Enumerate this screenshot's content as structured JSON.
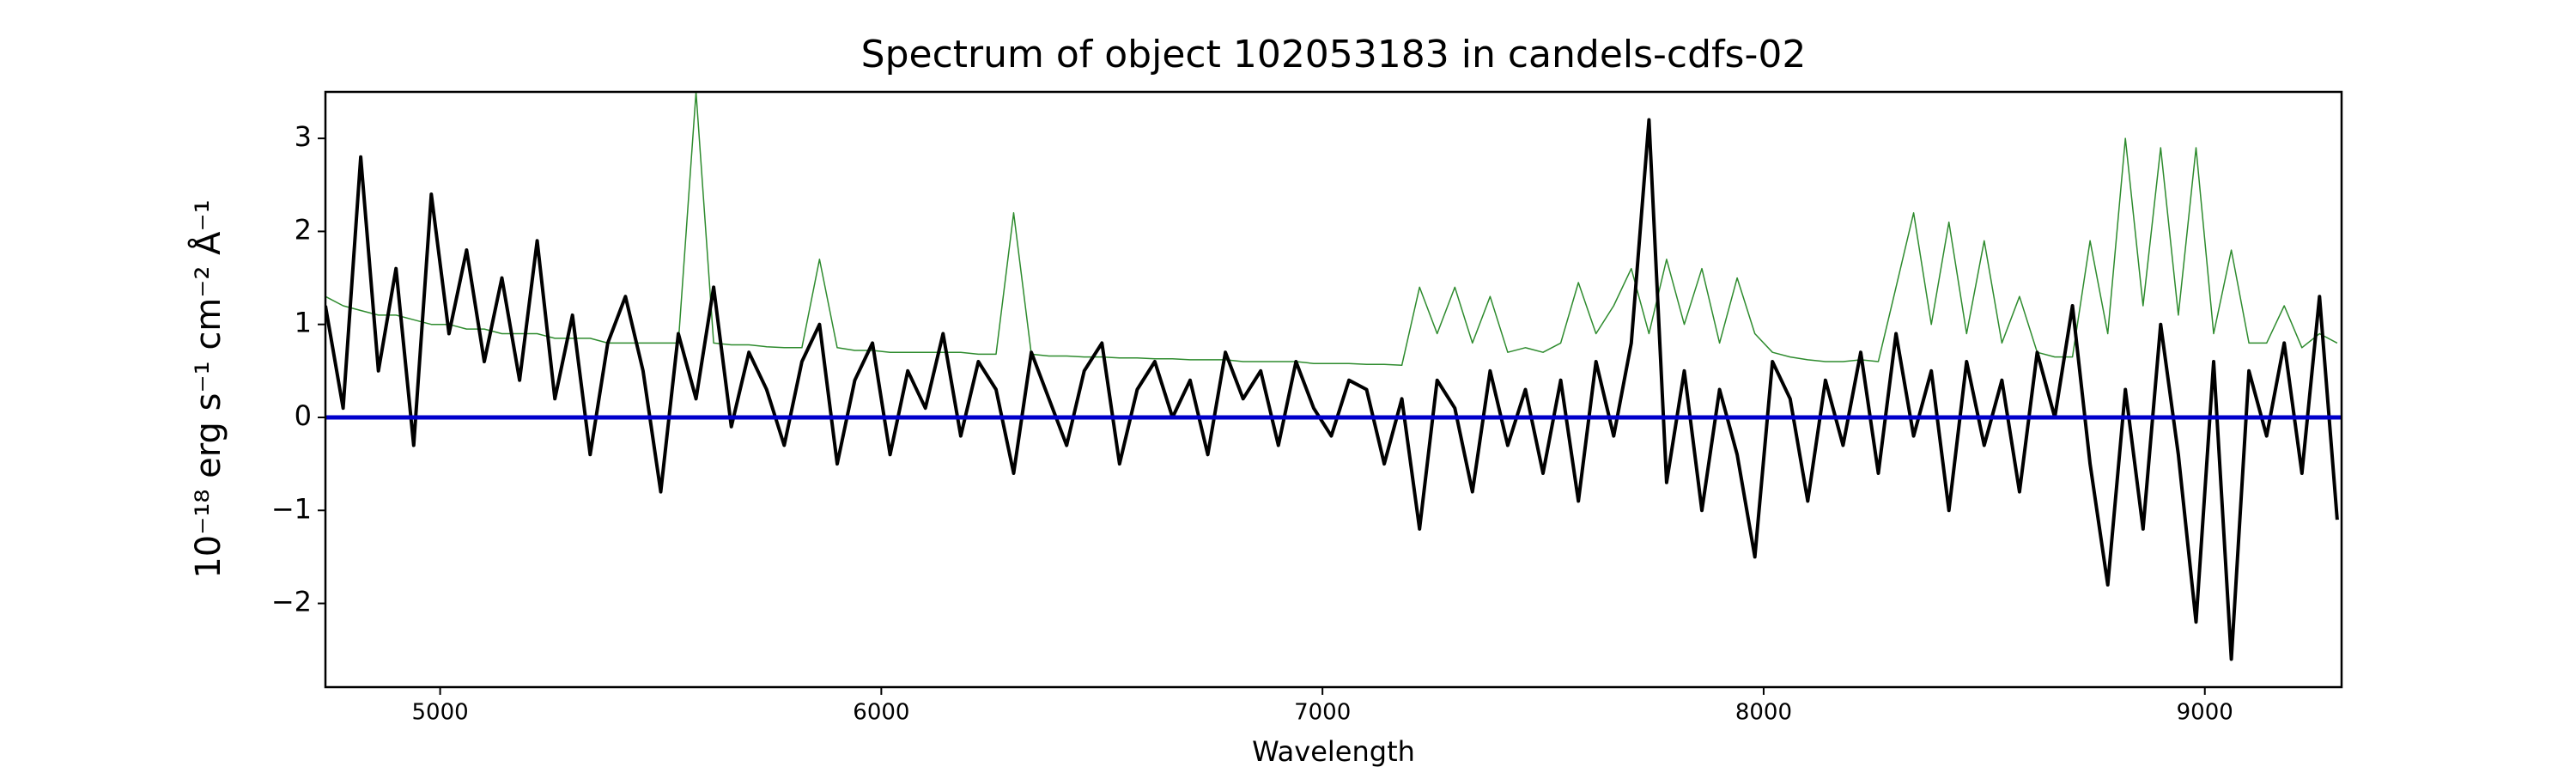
{
  "chart_data": {
    "type": "line",
    "title": "Spectrum of object 102053183 in candels-cdfs-02",
    "xlabel": "Wavelength",
    "ylabel": "10⁻¹⁸ erg s⁻¹ cm⁻² Å⁻¹",
    "xlim": [
      4740,
      9310
    ],
    "ylim": [
      -2.9,
      3.5
    ],
    "xticks": [
      5000,
      6000,
      7000,
      8000,
      9000
    ],
    "yticks": [
      -2,
      -1,
      0,
      1,
      2,
      3
    ],
    "grid": false,
    "series": [
      {
        "color": "#2e8b2e",
        "width": 1.5,
        "x": [
          4740,
          4780,
          4820,
          4860,
          4900,
          4940,
          4980,
          5020,
          5060,
          5100,
          5140,
          5180,
          5220,
          5260,
          5300,
          5340,
          5380,
          5420,
          5460,
          5500,
          5540,
          5580,
          5620,
          5660,
          5700,
          5740,
          5780,
          5820,
          5860,
          5900,
          5940,
          5980,
          6020,
          6060,
          6100,
          6140,
          6180,
          6220,
          6260,
          6300,
          6340,
          6380,
          6420,
          6460,
          6500,
          6540,
          6580,
          6620,
          6660,
          6700,
          6740,
          6780,
          6820,
          6860,
          6900,
          6940,
          6980,
          7020,
          7060,
          7100,
          7140,
          7180,
          7220,
          7260,
          7300,
          7340,
          7380,
          7420,
          7460,
          7500,
          7540,
          7580,
          7620,
          7660,
          7700,
          7740,
          7780,
          7820,
          7860,
          7900,
          7940,
          7980,
          8020,
          8060,
          8100,
          8140,
          8180,
          8220,
          8260,
          8300,
          8340,
          8380,
          8420,
          8460,
          8500,
          8540,
          8580,
          8620,
          8660,
          8700,
          8740,
          8780,
          8820,
          8860,
          8900,
          8940,
          8980,
          9020,
          9060,
          9100,
          9140,
          9180,
          9220,
          9260,
          9300
        ],
        "values": [
          1.3,
          1.2,
          1.15,
          1.1,
          1.1,
          1.05,
          1.0,
          1.0,
          0.95,
          0.95,
          0.9,
          0.9,
          0.9,
          0.85,
          0.85,
          0.85,
          0.8,
          0.8,
          0.8,
          0.8,
          0.8,
          3.5,
          0.8,
          0.78,
          0.78,
          0.76,
          0.75,
          0.75,
          1.7,
          0.75,
          0.72,
          0.72,
          0.7,
          0.7,
          0.7,
          0.7,
          0.7,
          0.68,
          0.68,
          2.2,
          0.68,
          0.66,
          0.66,
          0.65,
          0.65,
          0.64,
          0.64,
          0.63,
          0.63,
          0.62,
          0.62,
          0.62,
          0.6,
          0.6,
          0.6,
          0.6,
          0.58,
          0.58,
          0.58,
          0.57,
          0.57,
          0.56,
          1.4,
          0.9,
          1.4,
          0.8,
          1.3,
          0.7,
          0.75,
          0.7,
          0.8,
          1.45,
          0.9,
          1.2,
          1.6,
          0.9,
          1.7,
          1.0,
          1.6,
          0.8,
          1.5,
          0.9,
          0.7,
          0.65,
          0.62,
          0.6,
          0.6,
          0.62,
          0.6,
          1.4,
          2.2,
          1.0,
          2.1,
          0.9,
          1.9,
          0.8,
          1.3,
          0.7,
          0.65,
          0.65,
          1.9,
          0.9,
          3.0,
          1.2,
          2.9,
          1.1,
          2.9,
          0.9,
          1.8,
          0.8,
          0.8,
          1.2,
          0.75,
          0.9,
          0.8
        ]
      },
      {
        "color": "#000000",
        "width": 4,
        "x": [
          4740,
          4780,
          4820,
          4860,
          4900,
          4940,
          4980,
          5020,
          5060,
          5100,
          5140,
          5180,
          5220,
          5260,
          5300,
          5340,
          5380,
          5420,
          5460,
          5500,
          5540,
          5580,
          5620,
          5660,
          5700,
          5740,
          5780,
          5820,
          5860,
          5900,
          5940,
          5980,
          6020,
          6060,
          6100,
          6140,
          6180,
          6220,
          6260,
          6300,
          6340,
          6380,
          6420,
          6460,
          6500,
          6540,
          6580,
          6620,
          6660,
          6700,
          6740,
          6780,
          6820,
          6860,
          6900,
          6940,
          6980,
          7020,
          7060,
          7100,
          7140,
          7180,
          7220,
          7260,
          7300,
          7340,
          7380,
          7420,
          7460,
          7500,
          7540,
          7580,
          7620,
          7660,
          7700,
          7740,
          7780,
          7820,
          7860,
          7900,
          7940,
          7980,
          8020,
          8060,
          8100,
          8140,
          8180,
          8220,
          8260,
          8300,
          8340,
          8380,
          8420,
          8460,
          8500,
          8540,
          8580,
          8620,
          8660,
          8700,
          8740,
          8780,
          8820,
          8860,
          8900,
          8940,
          8980,
          9020,
          9060,
          9100,
          9140,
          9180,
          9220,
          9260,
          9300
        ],
        "values": [
          1.2,
          0.1,
          2.8,
          0.5,
          1.6,
          -0.3,
          2.4,
          0.9,
          1.8,
          0.6,
          1.5,
          0.4,
          1.9,
          0.2,
          1.1,
          -0.4,
          0.8,
          1.3,
          0.5,
          -0.8,
          0.9,
          0.2,
          1.4,
          -0.1,
          0.7,
          0.3,
          -0.3,
          0.6,
          1.0,
          -0.5,
          0.4,
          0.8,
          -0.4,
          0.5,
          0.1,
          0.9,
          -0.2,
          0.6,
          0.3,
          -0.6,
          0.7,
          0.2,
          -0.3,
          0.5,
          0.8,
          -0.5,
          0.3,
          0.6,
          0.0,
          0.4,
          -0.4,
          0.7,
          0.2,
          0.5,
          -0.3,
          0.6,
          0.1,
          -0.2,
          0.4,
          0.3,
          -0.5,
          0.2,
          -1.2,
          0.4,
          0.1,
          -0.8,
          0.5,
          -0.3,
          0.3,
          -0.6,
          0.4,
          -0.9,
          0.6,
          -0.2,
          0.8,
          3.2,
          -0.7,
          0.5,
          -1.0,
          0.3,
          -0.4,
          -1.5,
          0.6,
          0.2,
          -0.9,
          0.4,
          -0.3,
          0.7,
          -0.6,
          0.9,
          -0.2,
          0.5,
          -1.0,
          0.6,
          -0.3,
          0.4,
          -0.8,
          0.7,
          0.0,
          1.2,
          -0.5,
          -1.8,
          0.3,
          -1.2,
          1.0,
          -0.4,
          -2.2,
          0.6,
          -2.6,
          0.5,
          -0.2,
          0.8,
          -0.6,
          1.3,
          -1.1
        ]
      },
      {
        "color": "#0000cc",
        "width": 5,
        "x": [
          4740,
          9310
        ],
        "values": [
          0,
          0
        ]
      }
    ]
  }
}
